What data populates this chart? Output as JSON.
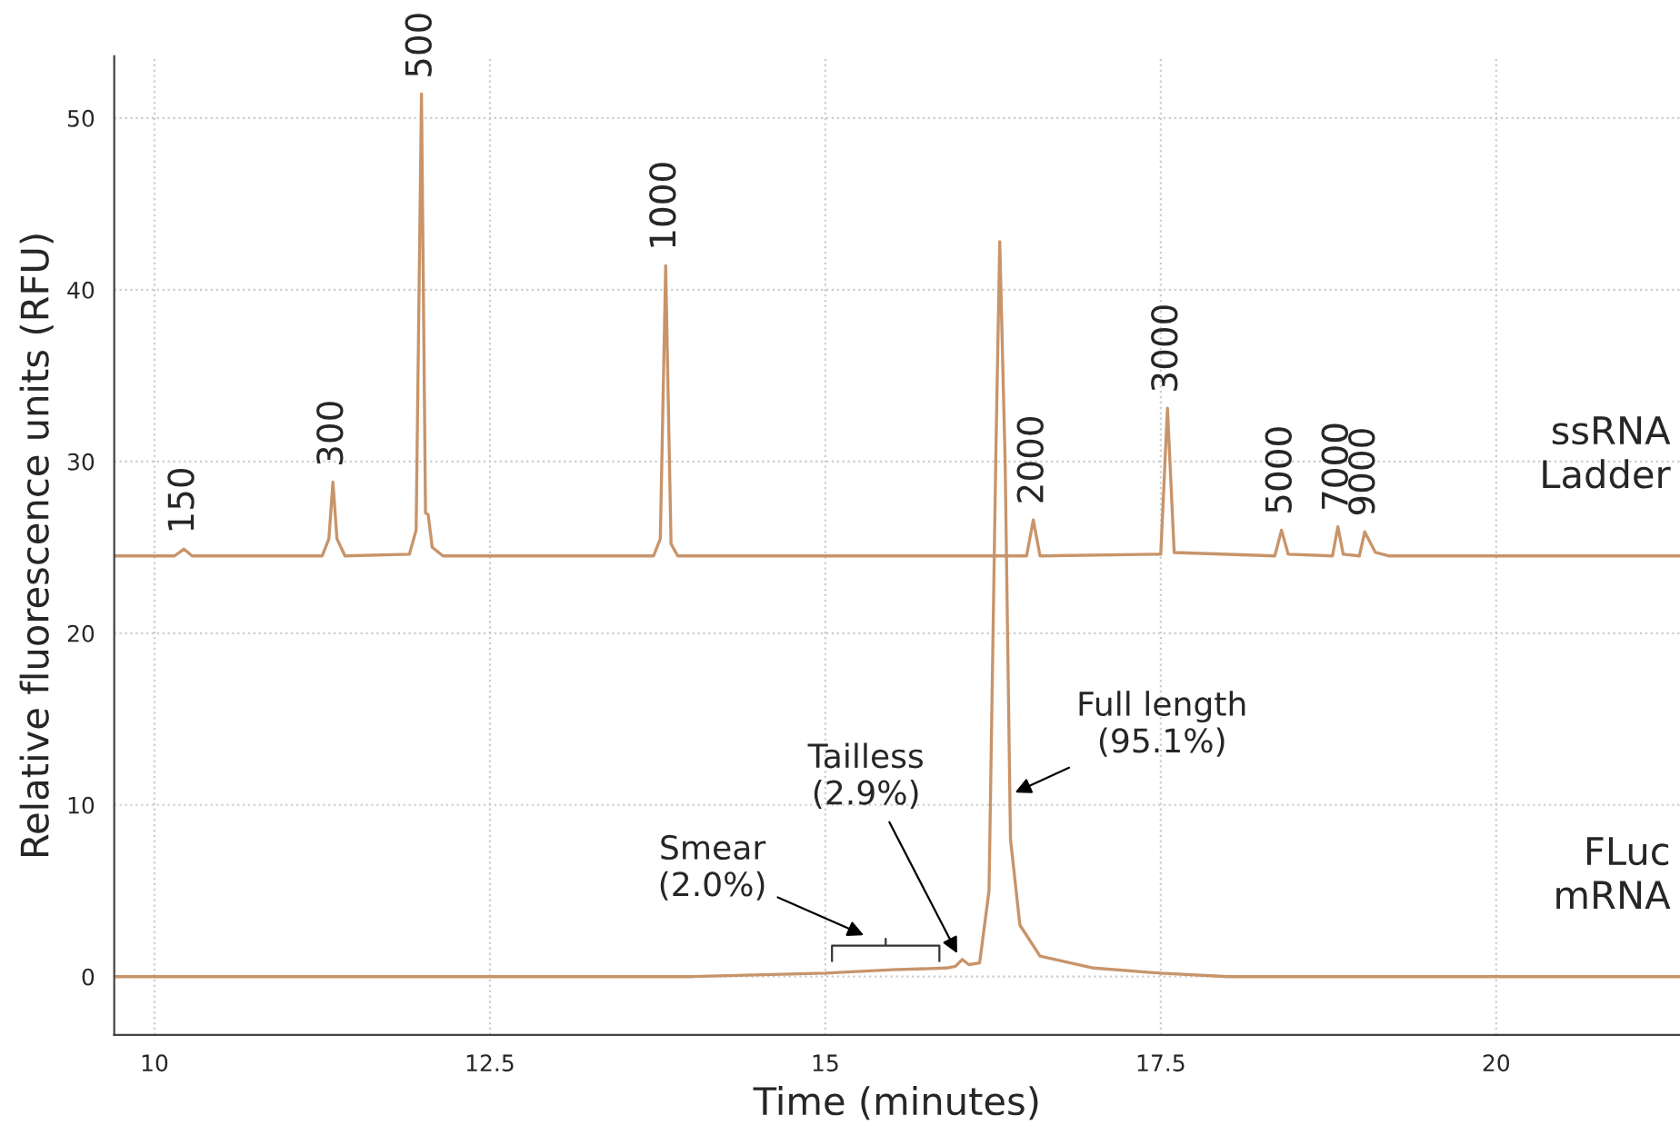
{
  "chart_data": {
    "type": "line",
    "xlabel": "Time (minutes)",
    "ylabel": "Relative fluorescence units (RFU)",
    "xlim": [
      9.7,
      21.37
    ],
    "ylim": [
      -3.4,
      53.6
    ],
    "xticks": [
      10,
      12.5,
      15,
      17.5,
      20
    ],
    "yticks": [
      0,
      10,
      20,
      30,
      40,
      50
    ],
    "grid": true,
    "legend": false,
    "marker": "none",
    "line_style": "solid",
    "series": [
      {
        "name": "ssRNA Ladder",
        "color": "#c8946a",
        "x": [
          9.7,
          10.15,
          10.22,
          10.28,
          11.25,
          11.3,
          11.33,
          11.36,
          11.42,
          11.9,
          11.95,
          11.99,
          12.02,
          12.04,
          12.07,
          12.15,
          13.72,
          13.77,
          13.81,
          13.85,
          13.9,
          16.5,
          16.55,
          16.6,
          17.5,
          17.55,
          17.6,
          18.35,
          18.4,
          18.45,
          18.78,
          18.82,
          18.86,
          18.98,
          19.02,
          19.1,
          19.2,
          21.37
        ],
        "values": [
          24.5,
          24.5,
          24.9,
          24.5,
          24.5,
          25.5,
          28.8,
          25.5,
          24.5,
          24.6,
          26,
          51.4,
          27,
          26.9,
          25,
          24.5,
          24.5,
          25.5,
          41.4,
          25.2,
          24.5,
          24.5,
          26.6,
          24.5,
          24.6,
          33.1,
          24.7,
          24.5,
          26,
          24.6,
          24.5,
          26.2,
          24.6,
          24.5,
          25.9,
          24.7,
          24.5,
          24.5
        ]
      },
      {
        "name": "FLuc mRNA",
        "color": "#c8946a",
        "x": [
          9.7,
          14,
          15,
          15.5,
          15.9,
          15.97,
          16.02,
          16.07,
          16.15,
          16.22,
          16.27,
          16.3,
          16.34,
          16.38,
          16.45,
          16.6,
          17,
          17.5,
          18,
          21.37
        ],
        "values": [
          0,
          0,
          0.2,
          0.4,
          0.5,
          0.6,
          1.0,
          0.7,
          0.8,
          5,
          30,
          42.8,
          30,
          8,
          3,
          1.2,
          0.5,
          0.2,
          0,
          0
        ]
      }
    ],
    "annotations": [
      {
        "text": "150",
        "x": 10.22,
        "y": 24.9
      },
      {
        "text": "300",
        "x": 11.33,
        "y": 28.8
      },
      {
        "text": "500",
        "x": 11.99,
        "y": 51.4
      },
      {
        "text": "1000",
        "x": 13.81,
        "y": 41.4
      },
      {
        "text": "2000",
        "x": 16.55,
        "y": 26.6
      },
      {
        "text": "3000",
        "x": 17.55,
        "y": 33.1
      },
      {
        "text": "5000",
        "x": 18.4,
        "y": 26
      },
      {
        "text": "7000",
        "x": 18.82,
        "y": 26.2
      },
      {
        "text": "9000",
        "x": 19.02,
        "y": 25.9
      },
      "Smear\n(2.0%)",
      {
        "text": "Tailless\n(2.9%)",
        "x": 16.0,
        "y": 1.1
      },
      {
        "text": "Full length\n(95.1%)",
        "x": 16.38,
        "y": 10.6
      }
    ]
  }
}
